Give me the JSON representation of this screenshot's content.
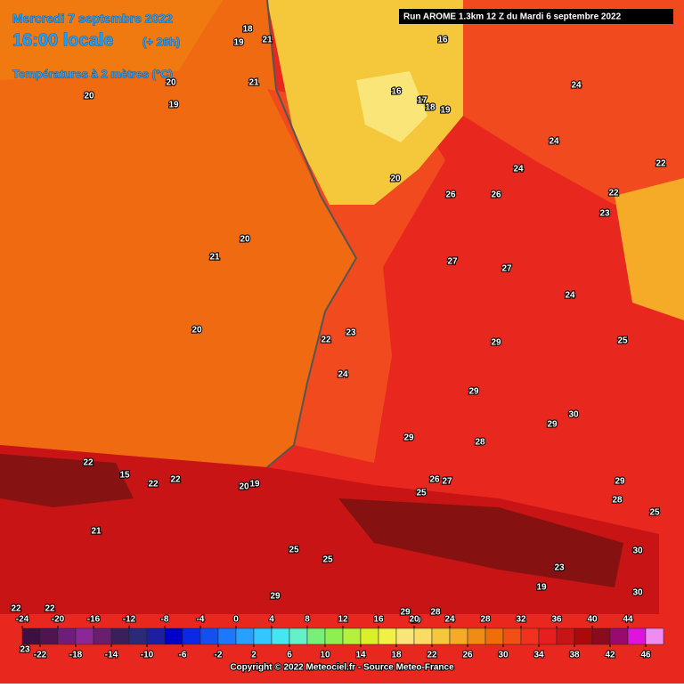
{
  "header": {
    "date": "Mercredi 7 septembre 2022",
    "time": "16:00 locale",
    "lead": "(+ 26h)",
    "variable": "Températures à 2 mètres (°C)",
    "run": "Run AROME 1.3km 12 Z du Mardi 6 septembre 2022"
  },
  "map_labels": [
    20,
    19,
    20,
    21,
    18,
    19,
    21,
    16,
    17,
    18,
    19,
    16,
    24,
    24,
    24,
    22,
    20,
    26,
    26,
    22,
    23,
    20,
    21,
    27,
    27,
    24,
    20,
    22,
    23,
    29,
    25,
    24,
    29,
    30,
    29,
    29,
    28,
    22,
    15,
    22,
    22,
    20,
    19,
    26,
    27,
    25,
    29,
    28,
    21,
    25,
    25,
    30,
    29,
    30,
    22,
    22,
    29,
    20,
    28,
    23,
    19,
    23,
    25
  ],
  "colorbar": {
    "range": [
      -24,
      48
    ],
    "ticks_top": [
      -24,
      -20,
      -16,
      -12,
      -8,
      -4,
      0,
      4,
      8,
      12,
      16,
      20,
      24,
      28,
      32,
      36,
      40,
      44
    ],
    "ticks_bottom": [
      -22,
      -18,
      -14,
      -10,
      -6,
      -2,
      2,
      6,
      10,
      14,
      18,
      22,
      26,
      30,
      34,
      38,
      42,
      46
    ],
    "colors": [
      "#3c1040",
      "#501450",
      "#6e1e78",
      "#8c2896",
      "#6a1e6e",
      "#3c1e5a",
      "#2a2a78",
      "#1e1ea0",
      "#0000c8",
      "#0a28e6",
      "#1450f0",
      "#1e78ff",
      "#28a0ff",
      "#32c8ff",
      "#46e6f0",
      "#64f0c8",
      "#78f078",
      "#8cf050",
      "#b4f03c",
      "#dcf028",
      "#f0f046",
      "#fae678",
      "#fadc64",
      "#f5c83c",
      "#f5aa28",
      "#f08c14",
      "#f06e0a",
      "#f05014",
      "#f0321e",
      "#e61e1e",
      "#c81414",
      "#aa0a0a",
      "#8c0a1e",
      "#9a0a6e",
      "#dc14dc",
      "#f08cf0"
    ]
  },
  "footer": {
    "copyright": "Copyright © 2022 Meteociel.fr - Source Meteo-France"
  }
}
